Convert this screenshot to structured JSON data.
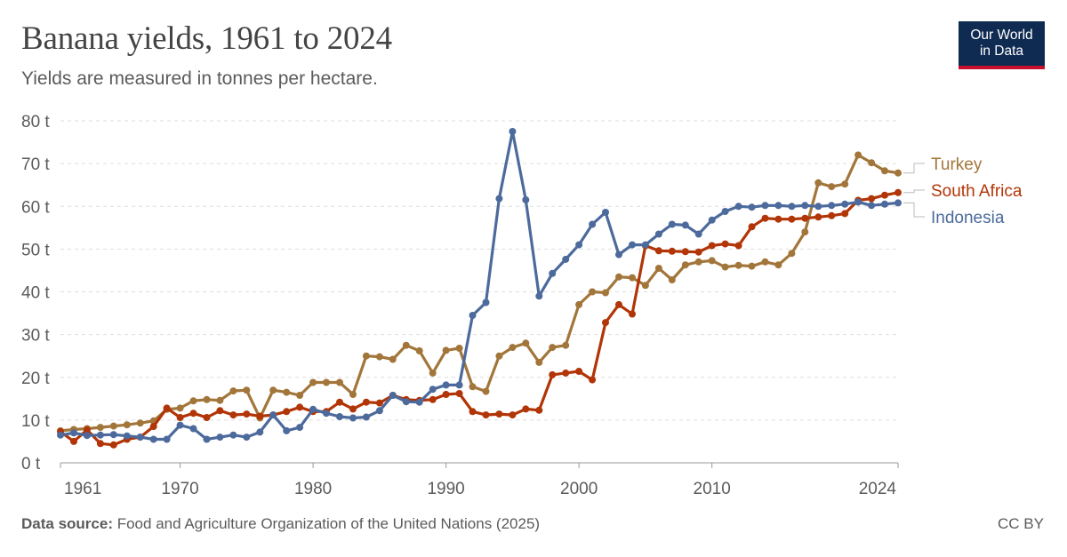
{
  "header": {
    "title": "Banana yields, 1961 to 2024",
    "subtitle": "Yields are measured in tonnes per hectare."
  },
  "logo": {
    "line1": "Our World",
    "line2": "in Data"
  },
  "footer": {
    "source_label": "Data source:",
    "source_text": "Food and Agriculture Organization of the United Nations (2025)",
    "license": "CC BY"
  },
  "colors": {
    "Turkey": "#a2763a",
    "South Africa": "#b13507",
    "Indonesia": "#4c6a9c",
    "grid": "#dddddd",
    "text": "#5b5b5b"
  },
  "chart_data": {
    "type": "line",
    "title": "Banana yields, 1961 to 2024",
    "subtitle": "Yields are measured in tonnes per hectare.",
    "ylim": [
      0,
      80
    ],
    "xlim": [
      1961,
      2024
    ],
    "y_unit": "t",
    "y_ticks": [
      "0 t",
      "10 t",
      "20 t",
      "30 t",
      "40 t",
      "50 t",
      "60 t",
      "70 t",
      "80 t"
    ],
    "x_ticks": [
      "1961",
      "1970",
      "1980",
      "1990",
      "2000",
      "2010",
      "2024"
    ],
    "grid": "horizontal dashed",
    "legend": "line-end labels",
    "x": [
      1961,
      1962,
      1963,
      1964,
      1965,
      1966,
      1967,
      1968,
      1969,
      1970,
      1971,
      1972,
      1973,
      1974,
      1975,
      1976,
      1977,
      1978,
      1979,
      1980,
      1981,
      1982,
      1983,
      1984,
      1985,
      1986,
      1987,
      1988,
      1989,
      1990,
      1991,
      1992,
      1993,
      1994,
      1995,
      1996,
      1997,
      1998,
      1999,
      2000,
      2001,
      2002,
      2003,
      2004,
      2005,
      2006,
      2007,
      2008,
      2009,
      2010,
      2011,
      2012,
      2013,
      2014,
      2015,
      2016,
      2017,
      2018,
      2019,
      2020,
      2021,
      2022,
      2023,
      2024
    ],
    "series": [
      {
        "name": "Turkey",
        "values": [
          7.5,
          7.8,
          8.0,
          8.3,
          8.6,
          8.9,
          9.3,
          9.8,
          12.5,
          12.8,
          14.5,
          14.8,
          14.6,
          16.8,
          17.0,
          10.5,
          17.0,
          16.5,
          15.8,
          18.8,
          18.8,
          18.8,
          16.0,
          25.0,
          24.8,
          24.2,
          27.5,
          26.2,
          21.0,
          26.3,
          26.8,
          17.8,
          16.7,
          25.0,
          27.0,
          28.0,
          23.5,
          27.0,
          27.5,
          37.0,
          40.0,
          39.8,
          43.5,
          43.3,
          41.5,
          45.5,
          42.8,
          46.3,
          47.0,
          47.3,
          45.8,
          46.2,
          46.0,
          47.0,
          46.3,
          49.0,
          54.0,
          65.5,
          64.6,
          65.2,
          72.0,
          70.2,
          68.3,
          67.8
        ]
      },
      {
        "name": "South Africa",
        "values": [
          7.3,
          5.0,
          7.7,
          4.5,
          4.2,
          5.5,
          6.0,
          8.5,
          12.8,
          10.6,
          11.6,
          10.6,
          12.2,
          11.2,
          11.4,
          10.9,
          11.2,
          12.0,
          13.0,
          12.0,
          12.0,
          14.2,
          12.6,
          14.2,
          14.0,
          15.8,
          14.8,
          14.6,
          14.8,
          16.0,
          16.2,
          12.0,
          11.2,
          11.4,
          11.2,
          12.6,
          12.3,
          20.6,
          21.0,
          21.4,
          19.4,
          32.8,
          37.0,
          34.8,
          50.8,
          49.6,
          49.5,
          49.4,
          49.3,
          50.8,
          51.2,
          50.8,
          55.2,
          57.2,
          57.0,
          57.0,
          57.2,
          57.5,
          57.8,
          58.3,
          61.4,
          61.8,
          62.6,
          63.2
        ]
      },
      {
        "name": "Indonesia",
        "values": [
          6.5,
          7.0,
          6.4,
          6.5,
          6.6,
          6.3,
          6.0,
          5.5,
          5.5,
          8.8,
          8.0,
          5.5,
          6.0,
          6.5,
          6.0,
          7.2,
          11.2,
          7.5,
          8.3,
          12.5,
          11.6,
          10.8,
          10.5,
          10.7,
          12.2,
          15.8,
          14.3,
          14.2,
          17.2,
          18.2,
          18.2,
          34.5,
          37.5,
          61.8,
          77.5,
          61.5,
          39.0,
          44.3,
          47.6,
          51.0,
          55.8,
          58.6,
          48.7,
          51.0,
          51.0,
          53.5,
          55.8,
          55.6,
          53.5,
          56.8,
          58.8,
          60.0,
          59.8,
          60.2,
          60.2,
          60.0,
          60.2,
          60.0,
          60.2,
          60.5,
          61.0,
          60.2,
          60.5,
          60.8
        ]
      }
    ]
  }
}
